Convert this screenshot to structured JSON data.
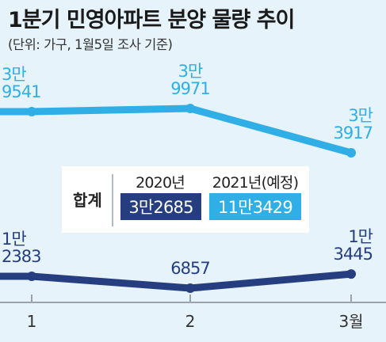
{
  "title": "1분기 민영아파트 분양 물량 추이",
  "subtitle": "(단위: 가구, 1월5일 조사 기준)",
  "colors": {
    "background": "#e6f3fb",
    "series_2021": "#30aee6",
    "series_2020": "#263e80",
    "axis": "#9aa3ad"
  },
  "chart_data": {
    "type": "line",
    "categories": [
      "1",
      "2",
      "3월"
    ],
    "series": [
      {
        "name": "2021년(예정)",
        "values": [
          39541,
          39971,
          33917
        ],
        "labels": [
          [
            "3만",
            "9541"
          ],
          [
            "3만",
            "9971"
          ],
          [
            "3만",
            "3917"
          ]
        ]
      },
      {
        "name": "2020년",
        "values": [
          12383,
          6857,
          13445
        ],
        "labels": [
          [
            "1만",
            "2383"
          ],
          [
            "",
            "6857"
          ],
          [
            "1만",
            "3445"
          ]
        ]
      }
    ],
    "legend": {
      "heading": "합계",
      "totals": [
        {
          "year": "2020년",
          "value": "3만2685"
        },
        {
          "year": "2021년(예정)",
          "value": "11만3429"
        }
      ]
    }
  }
}
